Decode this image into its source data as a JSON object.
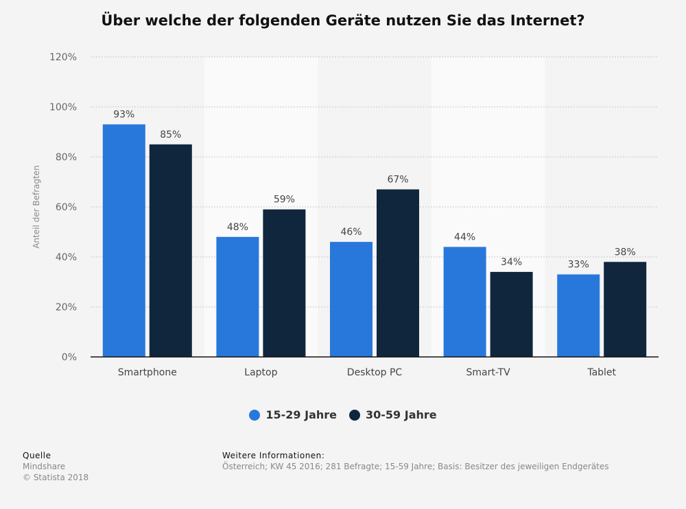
{
  "title": "Über welche der folgenden Geräte nutzen Sie das Internet?",
  "chart_data": {
    "type": "bar",
    "categories": [
      "Smartphone",
      "Laptop",
      "Desktop PC",
      "Smart-TV",
      "Tablet"
    ],
    "series": [
      {
        "name": "15-29 Jahre",
        "values": [
          93,
          48,
          46,
          44,
          33
        ],
        "color": "#2878dc"
      },
      {
        "name": "30-59 Jahre",
        "values": [
          85,
          59,
          67,
          34,
          38
        ],
        "color": "#10263d"
      }
    ],
    "ylabel": "Anteil der Befragten",
    "ylim": [
      0,
      120
    ],
    "yticks": [
      0,
      20,
      40,
      60,
      80,
      100,
      120
    ],
    "ytick_labels": [
      "0%",
      "20%",
      "40%",
      "60%",
      "80%",
      "100%",
      "120%"
    ],
    "value_labels": [
      [
        "93%",
        "48%",
        "46%",
        "44%",
        "33%"
      ],
      [
        "85%",
        "59%",
        "67%",
        "34%",
        "38%"
      ]
    ],
    "grid": true,
    "legend_position": "bottom"
  },
  "footer": {
    "source_heading": "Quelle",
    "source": "Mindshare",
    "copyright": "© Statista 2018",
    "info_heading": "Weitere Informationen:",
    "info": "Österreich; KW 45 2016; 281 Befragte; 15-59 Jahre; Basis: Besitzer des jeweiligen Endgerätes"
  }
}
